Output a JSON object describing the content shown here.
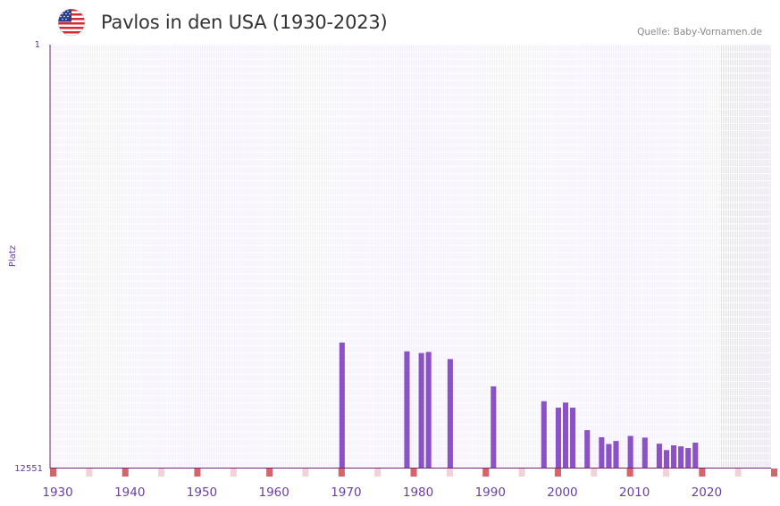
{
  "header": {
    "title": "Pavlos in den USA (1930-2023)",
    "source": "Quelle: Baby-Vornamen.de",
    "flag_icon": "usa-flag-icon"
  },
  "chart_data": {
    "type": "bar",
    "title": "Pavlos in den USA (1930-2023)",
    "xlabel": "",
    "ylabel": "Platz",
    "y_axis_inverted": true,
    "ylim": [
      1,
      12551
    ],
    "ytick_labels": [
      "1",
      "12551"
    ],
    "xtick_labels": [
      "1930",
      "1940",
      "1950",
      "1960",
      "1970",
      "1980",
      "1990",
      "2000",
      "2010",
      "2020"
    ],
    "xlim": [
      1929,
      2029
    ],
    "x": [
      1969,
      1978,
      1980,
      1981,
      1984,
      1990,
      1997,
      1999,
      2000,
      2001,
      2003,
      2005,
      2006,
      2007,
      2009,
      2011,
      2013,
      2014,
      2015,
      2016,
      2017,
      2018
    ],
    "values": [
      8840,
      9100,
      9150,
      9120,
      9330,
      10140,
      10580,
      10770,
      10620,
      10770,
      11440,
      11650,
      11850,
      11760,
      11610,
      11660,
      11840,
      12030,
      11890,
      11920,
      11970,
      11810
    ],
    "shaded_years_from": 2022,
    "colors": {
      "bar": "#8a52c6",
      "axis": "#6b2b6b",
      "marker": "#d9636b",
      "marker_light": "#f1d2d7",
      "grid_bg": "#f1edfa",
      "shade": "#e3dded"
    }
  }
}
